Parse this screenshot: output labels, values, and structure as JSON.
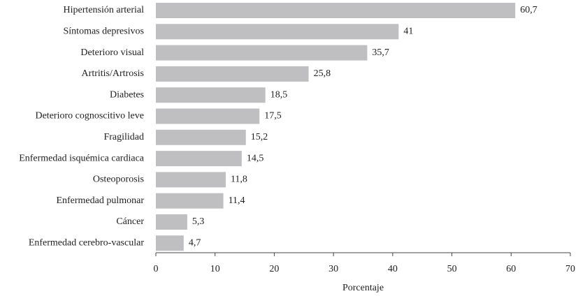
{
  "chart_data": {
    "type": "bar",
    "orientation": "horizontal",
    "categories": [
      "Hipertensión arterial",
      "Síntomas depresivos",
      "Deterioro visual",
      "Artritis/Artrosis",
      "Diabetes",
      "Deterioro cognoscitivo leve",
      "Fragilidad",
      "Enfermedad isquémica cardiaca",
      "Osteoporosis",
      "Enfermedad pulmonar",
      "Cáncer",
      "Enfermedad cerebro-vascular"
    ],
    "values": [
      60.7,
      41,
      35.7,
      25.8,
      18.5,
      17.5,
      15.2,
      14.5,
      11.8,
      11.4,
      5.3,
      4.7
    ],
    "value_labels": [
      "60,7",
      "41",
      "35,7",
      "25,8",
      "18,5",
      "17,5",
      "15,2",
      "14,5",
      "11,8",
      "11,4",
      "5,3",
      "4,7"
    ],
    "xlabel": "Porcentaje",
    "xlim": [
      0,
      70
    ],
    "xticks": [
      0,
      10,
      20,
      30,
      40,
      50,
      60,
      70
    ],
    "grid": false,
    "bar_color": "#bfbfc1"
  }
}
